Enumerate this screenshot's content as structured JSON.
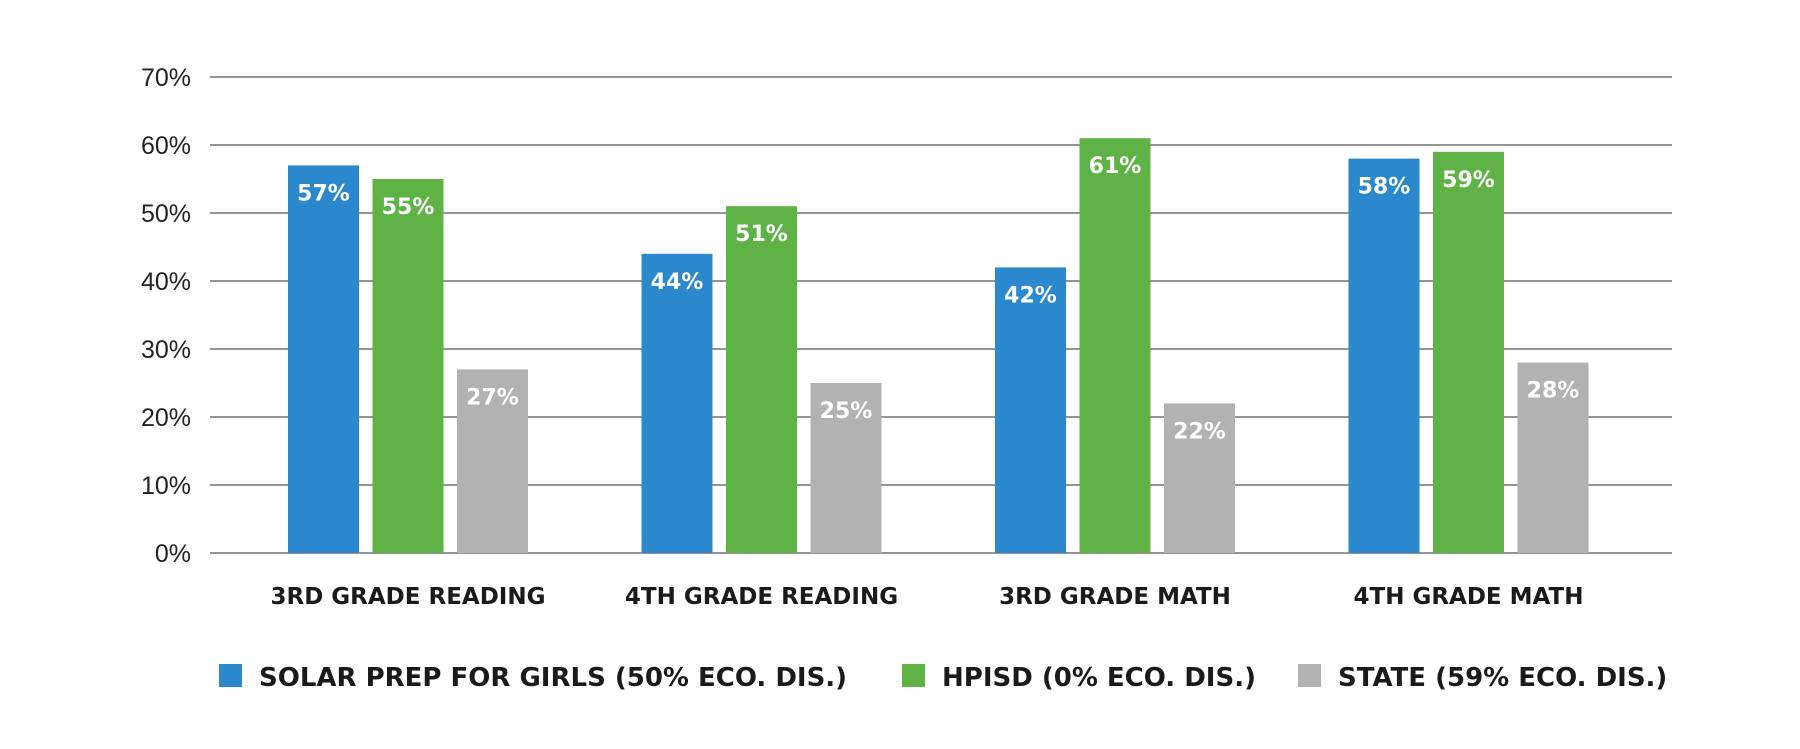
{
  "chart_data": {
    "type": "bar",
    "categories": [
      "3RD GRADE READING",
      "4TH GRADE READING",
      "3RD GRADE MATH",
      "4TH GRADE MATH"
    ],
    "series": [
      {
        "name": "SOLAR PREP FOR GIRLS (50% ECO. DIS.)",
        "color": "#2b88cc",
        "values": [
          57,
          44,
          42,
          58
        ],
        "labels": [
          "57%",
          "44%",
          "42%",
          "58%"
        ]
      },
      {
        "name": "HPISD (0% ECO. DIS.)",
        "color": "#5fb246",
        "values": [
          55,
          51,
          61,
          59
        ],
        "labels": [
          "55%",
          "51%",
          "61%",
          "59%"
        ]
      },
      {
        "name": "STATE (59% ECO. DIS.)",
        "color": "#b2b2b2",
        "values": [
          27,
          25,
          22,
          28
        ],
        "labels": [
          "27%",
          "25%",
          "22%",
          "28%"
        ]
      }
    ],
    "yticks": [
      0,
      10,
      20,
      30,
      40,
      50,
      60,
      70
    ],
    "ytick_labels": [
      "0%",
      "10%",
      "20%",
      "30%",
      "40%",
      "50%",
      "60%",
      "70%"
    ],
    "ylim": [
      0,
      70
    ],
    "grid": true,
    "legend_position": "bottom",
    "title": "",
    "xlabel": "",
    "ylabel": ""
  }
}
